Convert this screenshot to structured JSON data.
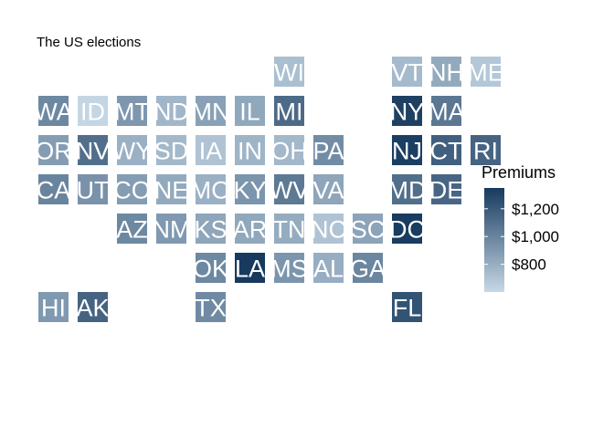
{
  "chart_data": {
    "type": "heatmap",
    "title": "The US elections",
    "legend": {
      "title": "Premiums",
      "ticks": [
        {
          "value": 800,
          "label": "$800"
        },
        {
          "value": 1000,
          "label": "$1,000"
        },
        {
          "value": 1200,
          "label": "$1,200"
        }
      ],
      "range": [
        600,
        1350
      ],
      "color_low": "#c6d8e6",
      "color_high": "#173a5e",
      "placement": "right"
    },
    "tiles": [
      {
        "state": "WI",
        "col": 6,
        "row": 0,
        "value": 720
      },
      {
        "state": "VT",
        "col": 9,
        "row": 0,
        "value": 740
      },
      {
        "state": "NH",
        "col": 10,
        "row": 0,
        "value": 820
      },
      {
        "state": "ME",
        "col": 11,
        "row": 0,
        "value": 680
      },
      {
        "state": "WA",
        "col": 0,
        "row": 1,
        "value": 980
      },
      {
        "state": "ID",
        "col": 1,
        "row": 1,
        "value": 610
      },
      {
        "state": "MT",
        "col": 2,
        "row": 1,
        "value": 910
      },
      {
        "state": "ND",
        "col": 3,
        "row": 1,
        "value": 760
      },
      {
        "state": "MN",
        "col": 4,
        "row": 1,
        "value": 860
      },
      {
        "state": "IL",
        "col": 5,
        "row": 1,
        "value": 830
      },
      {
        "state": "MI",
        "col": 6,
        "row": 1,
        "value": 1120
      },
      {
        "state": "NY",
        "col": 9,
        "row": 1,
        "value": 1320
      },
      {
        "state": "MA",
        "col": 10,
        "row": 1,
        "value": 1060
      },
      {
        "state": "OR",
        "col": 0,
        "row": 2,
        "value": 880
      },
      {
        "state": "NV",
        "col": 1,
        "row": 2,
        "value": 1100
      },
      {
        "state": "WY",
        "col": 2,
        "row": 2,
        "value": 790
      },
      {
        "state": "SD",
        "col": 3,
        "row": 2,
        "value": 750
      },
      {
        "state": "IA",
        "col": 4,
        "row": 2,
        "value": 700
      },
      {
        "state": "IN",
        "col": 5,
        "row": 2,
        "value": 770
      },
      {
        "state": "OH",
        "col": 6,
        "row": 2,
        "value": 750
      },
      {
        "state": "PA",
        "col": 7,
        "row": 2,
        "value": 960
      },
      {
        "state": "NJ",
        "col": 9,
        "row": 2,
        "value": 1330
      },
      {
        "state": "CT",
        "col": 10,
        "row": 2,
        "value": 1170
      },
      {
        "state": "RI",
        "col": 11,
        "row": 2,
        "value": 1150
      },
      {
        "state": "CA",
        "col": 0,
        "row": 3,
        "value": 1000
      },
      {
        "state": "UT",
        "col": 1,
        "row": 3,
        "value": 930
      },
      {
        "state": "CO",
        "col": 2,
        "row": 3,
        "value": 880
      },
      {
        "state": "NE",
        "col": 3,
        "row": 3,
        "value": 820
      },
      {
        "state": "MO",
        "col": 4,
        "row": 3,
        "value": 790
      },
      {
        "state": "KY",
        "col": 5,
        "row": 3,
        "value": 920
      },
      {
        "state": "WV",
        "col": 6,
        "row": 3,
        "value": 1050
      },
      {
        "state": "VA",
        "col": 7,
        "row": 3,
        "value": 840
      },
      {
        "state": "MD",
        "col": 9,
        "row": 3,
        "value": 1100
      },
      {
        "state": "DE",
        "col": 10,
        "row": 3,
        "value": 1140
      },
      {
        "state": "AZ",
        "col": 2,
        "row": 4,
        "value": 980
      },
      {
        "state": "NM",
        "col": 3,
        "row": 4,
        "value": 900
      },
      {
        "state": "KS",
        "col": 4,
        "row": 4,
        "value": 840
      },
      {
        "state": "AR",
        "col": 5,
        "row": 4,
        "value": 830
      },
      {
        "state": "TN",
        "col": 6,
        "row": 4,
        "value": 810
      },
      {
        "state": "NC",
        "col": 7,
        "row": 4,
        "value": 700
      },
      {
        "state": "SC",
        "col": 8,
        "row": 4,
        "value": 850
      },
      {
        "state": "DC",
        "col": 9,
        "row": 4,
        "value": 1340
      },
      {
        "state": "OK",
        "col": 4,
        "row": 5,
        "value": 980
      },
      {
        "state": "LA",
        "col": 5,
        "row": 5,
        "value": 1350
      },
      {
        "state": "MS",
        "col": 6,
        "row": 5,
        "value": 920
      },
      {
        "state": "AL",
        "col": 7,
        "row": 5,
        "value": 800
      },
      {
        "state": "GA",
        "col": 8,
        "row": 5,
        "value": 990
      },
      {
        "state": "HI",
        "col": 0,
        "row": 6,
        "value": 900
      },
      {
        "state": "AK",
        "col": 1,
        "row": 6,
        "value": 1150
      },
      {
        "state": "TX",
        "col": 4,
        "row": 6,
        "value": 970
      },
      {
        "state": "FL",
        "col": 9,
        "row": 6,
        "value": 1230
      }
    ]
  }
}
